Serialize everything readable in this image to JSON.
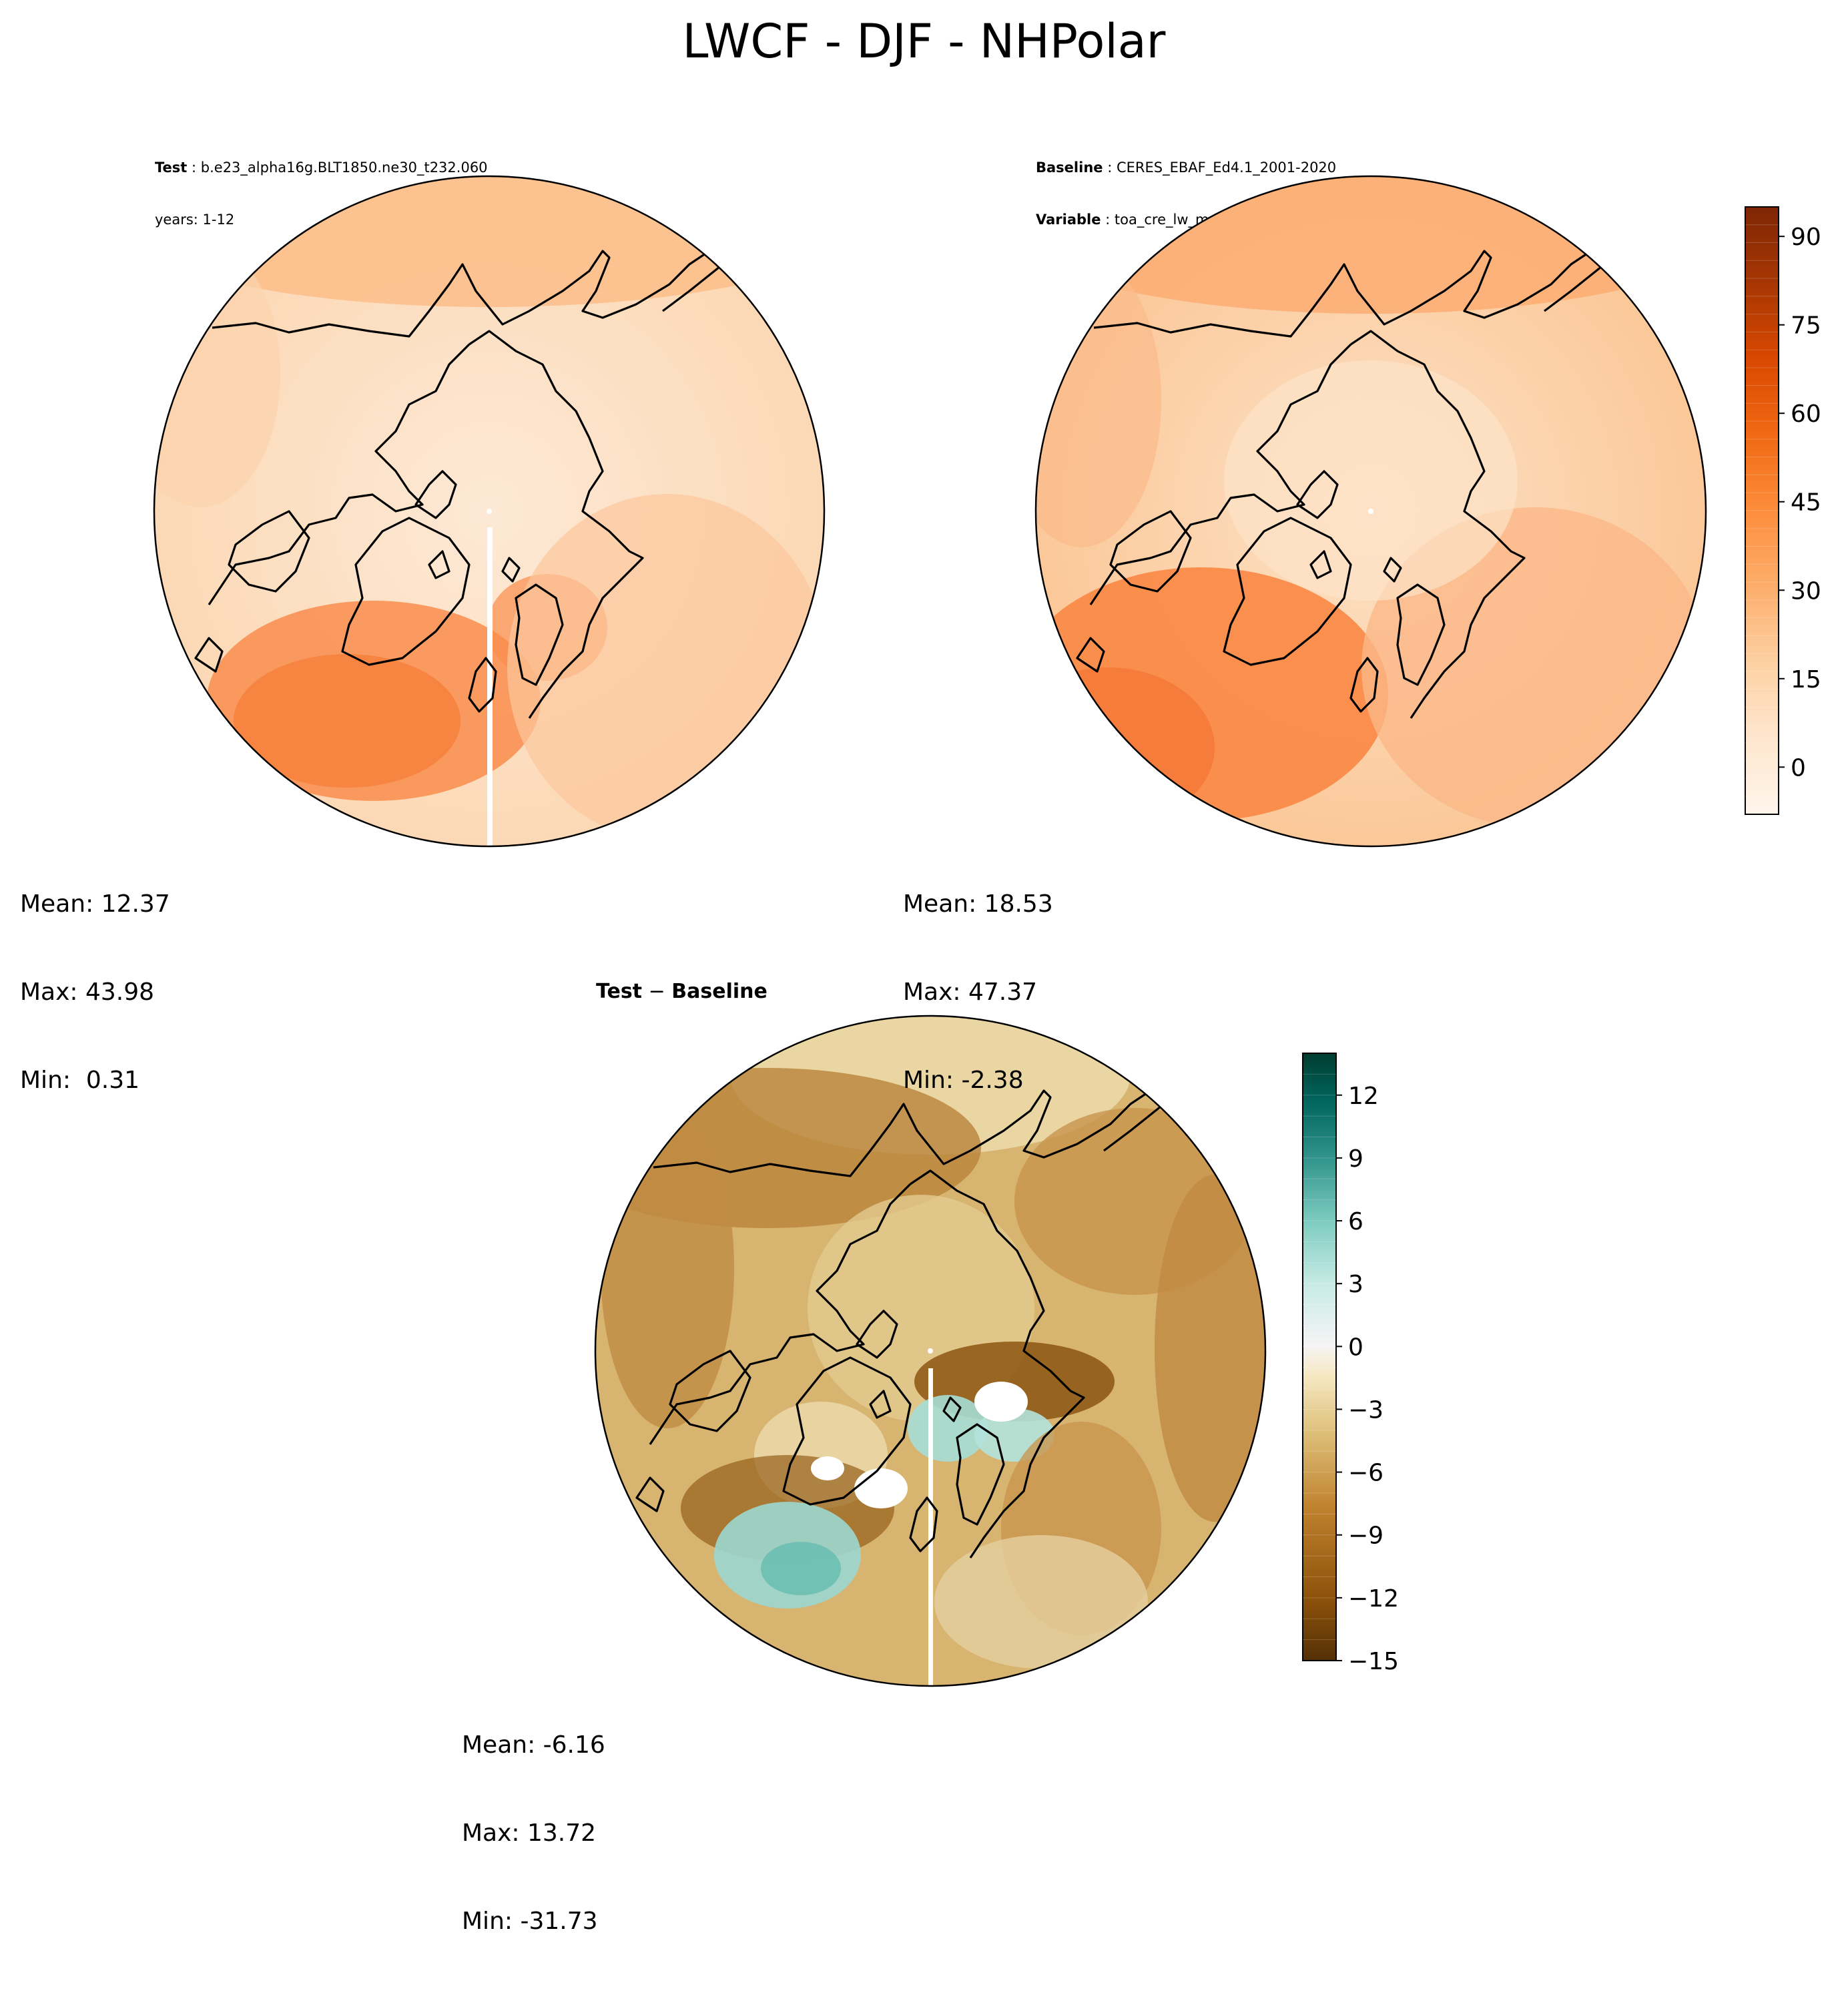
{
  "figure": {
    "title": "LWCF - DJF - NHPolar"
  },
  "panels": {
    "test": {
      "label": "Test",
      "case": "b.e23_alpha16g.BLT1850.ne30_t232.060",
      "years": "years: 1-12",
      "stats": {
        "mean": "Mean: 12.37",
        "max": "Max: 43.98",
        "min": "Min:  0.31"
      }
    },
    "baseline": {
      "label": "Baseline",
      "case": "CERES_EBAF_Ed4.1_2001-2020",
      "variable_label": "Variable",
      "variable": "toa_cre_lw_mon",
      "stats": {
        "mean": "Mean: 18.53",
        "max": "Max: 47.37",
        "min": "Min: -2.38"
      }
    },
    "diff": {
      "title_test": "Test",
      "title_minus": " − ",
      "title_base": "Baseline",
      "stats": {
        "mean": "Mean: -6.16",
        "max": "Max: 13.72",
        "min": "Min: -31.73"
      }
    }
  },
  "colorbars": {
    "main": {
      "cmap": "Oranges",
      "range": [
        -8,
        95
      ],
      "levels": 34,
      "ticks": [
        0,
        15,
        30,
        45,
        60,
        75,
        90
      ],
      "tick_labels": [
        "0",
        "15",
        "30",
        "45",
        "60",
        "75",
        "90"
      ],
      "colors": [
        "#fff5eb",
        "#fee6ce",
        "#fdd0a2",
        "#fdae6b",
        "#fd8d3c",
        "#f16913",
        "#d94801",
        "#a63603",
        "#7f2704"
      ]
    },
    "diff": {
      "cmap": "BrBG",
      "range": [
        -15,
        14
      ],
      "levels": 29,
      "ticks": [
        -15,
        -12,
        -9,
        -6,
        -3,
        0,
        3,
        6,
        9,
        12
      ],
      "tick_labels": [
        "−15",
        "−12",
        "−9",
        "−6",
        "−3",
        "0",
        "3",
        "6",
        "9",
        "12"
      ],
      "colors": [
        "#543005",
        "#8c510a",
        "#bf812d",
        "#dfc27d",
        "#f6e8c3",
        "#f5f5f5",
        "#c7eae5",
        "#80cdc1",
        "#35978f",
        "#01665e",
        "#003c30"
      ]
    }
  },
  "chart_data": [
    {
      "type": "heatmap",
      "projection": "north-polar-stereographic",
      "title": "Test: b.e23_alpha16g.BLT1850.ne30_t232.060",
      "subtitle": "years: 1-12",
      "field": "LWCF",
      "season": "DJF",
      "region": "NHPolar",
      "colorbar": "main",
      "stats": {
        "mean": 12.37,
        "max": 43.98,
        "min": 0.31
      }
    },
    {
      "type": "heatmap",
      "projection": "north-polar-stereographic",
      "title": "Baseline: CERES_EBAF_Ed4.1_2001-2020",
      "subtitle": "Variable: toa_cre_lw_mon",
      "field": "LWCF",
      "season": "DJF",
      "region": "NHPolar",
      "colorbar": "main",
      "colorbar_ticks": [
        0,
        15,
        30,
        45,
        60,
        75,
        90
      ],
      "stats": {
        "mean": 18.53,
        "max": 47.37,
        "min": -2.38
      }
    },
    {
      "type": "heatmap",
      "projection": "north-polar-stereographic",
      "title": "Test − Baseline",
      "field": "LWCF",
      "season": "DJF",
      "region": "NHPolar",
      "colorbar": "diff",
      "colorbar_ticks": [
        -15,
        -12,
        -9,
        -6,
        -3,
        0,
        3,
        6,
        9,
        12
      ],
      "stats": {
        "mean": -6.16,
        "max": 13.72,
        "min": -31.73
      }
    }
  ]
}
